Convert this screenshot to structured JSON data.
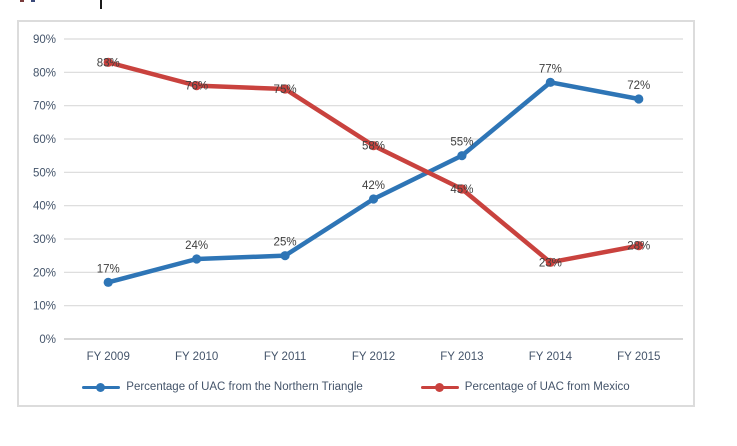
{
  "artifacts": {
    "note": "cropped text remnants along top edge of screenshot"
  },
  "chart_data": {
    "type": "line",
    "title": "",
    "categories": [
      "FY 2009",
      "FY 2010",
      "FY 2011",
      "FY 2012",
      "FY 2013",
      "FY 2014",
      "FY 2015"
    ],
    "series": [
      {
        "name": "Percentage of UAC from the Northern Triangle",
        "values": [
          17,
          24,
          25,
          42,
          55,
          77,
          72
        ],
        "labels": [
          "17%",
          "24%",
          "25%",
          "42%",
          "55%",
          "77%",
          "72%"
        ],
        "color": "#2E75B6",
        "label_position": "above"
      },
      {
        "name": "Percentage of UAC from Mexico",
        "values": [
          83,
          76,
          75,
          58,
          45,
          23,
          28
        ],
        "labels": [
          "83%",
          "76%",
          "75%",
          "58%",
          "45%",
          "23%",
          "28%"
        ],
        "color": "#C9423E",
        "label_position": "center"
      }
    ],
    "xlabel": "",
    "ylabel": "",
    "ylim": [
      0,
      90
    ],
    "ytick_step": 10,
    "ytick_labels": [
      "0%",
      "10%",
      "20%",
      "30%",
      "40%",
      "50%",
      "60%",
      "70%",
      "80%",
      "90%"
    ],
    "grid": true,
    "gridline_color": "#D9D9D9",
    "baseline_color": "#BFBFBF",
    "axis_text_color": "#44546A",
    "data_label_color": "#3F3F3F",
    "legend_position": "bottom"
  }
}
